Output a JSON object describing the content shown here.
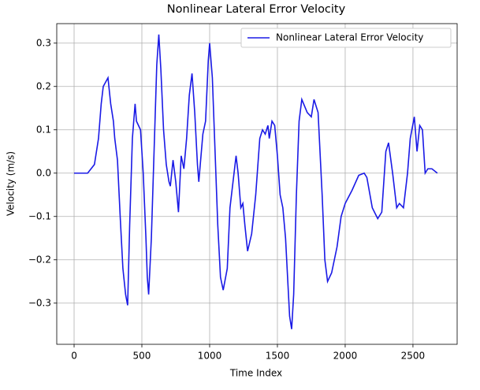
{
  "chart_data": {
    "type": "line",
    "title": "Nonlinear Lateral Error Velocity",
    "x_label": "Time Index",
    "y_label": "Velocity (m/s)",
    "x": [
      0,
      100,
      150,
      170,
      180,
      200,
      215,
      250,
      270,
      290,
      300,
      320,
      340,
      360,
      380,
      395,
      410,
      430,
      450,
      460,
      490,
      510,
      530,
      540,
      550,
      570,
      590,
      610,
      625,
      640,
      660,
      680,
      700,
      710,
      730,
      750,
      770,
      790,
      810,
      830,
      850,
      870,
      890,
      910,
      920,
      950,
      970,
      990,
      1000,
      1020,
      1040,
      1060,
      1080,
      1100,
      1130,
      1150,
      1180,
      1195,
      1210,
      1230,
      1245,
      1260,
      1280,
      1310,
      1340,
      1370,
      1390,
      1410,
      1430,
      1440,
      1460,
      1480,
      1500,
      1520,
      1540,
      1560,
      1590,
      1605,
      1620,
      1640,
      1660,
      1680,
      1720,
      1750,
      1770,
      1800,
      1830,
      1850,
      1870,
      1900,
      1940,
      1970,
      2000,
      2050,
      2100,
      2140,
      2160,
      2200,
      2240,
      2270,
      2300,
      2320,
      2350,
      2380,
      2400,
      2430,
      2460,
      2480,
      2510,
      2530,
      2550,
      2570,
      2590,
      2610,
      2640,
      2680
    ],
    "series": [
      {
        "name": "Nonlinear Lateral Error Velocity",
        "color": "#1a1ae6",
        "values": [
          0,
          0,
          0.02,
          0.06,
          0.08,
          0.16,
          0.2,
          0.22,
          0.16,
          0.12,
          0.08,
          0.03,
          -0.1,
          -0.22,
          -0.28,
          -0.305,
          -0.12,
          0.08,
          0.16,
          0.12,
          0.1,
          0.0,
          -0.15,
          -0.24,
          -0.28,
          -0.15,
          0.05,
          0.25,
          0.32,
          0.24,
          0.1,
          0.02,
          -0.02,
          -0.03,
          0.03,
          -0.02,
          -0.09,
          0.04,
          0.01,
          0.08,
          0.18,
          0.23,
          0.14,
          0.02,
          -0.02,
          0.09,
          0.12,
          0.26,
          0.3,
          0.22,
          0.05,
          -0.12,
          -0.24,
          -0.27,
          -0.22,
          -0.08,
          0.0,
          0.04,
          0.0,
          -0.08,
          -0.07,
          -0.12,
          -0.18,
          -0.14,
          -0.05,
          0.08,
          0.1,
          0.09,
          0.11,
          0.08,
          0.12,
          0.11,
          0.04,
          -0.05,
          -0.08,
          -0.15,
          -0.33,
          -0.36,
          -0.28,
          -0.05,
          0.12,
          0.17,
          0.14,
          0.13,
          0.17,
          0.14,
          -0.05,
          -0.2,
          -0.25,
          -0.23,
          -0.17,
          -0.1,
          -0.07,
          -0.04,
          -0.005,
          0.0,
          -0.01,
          -0.08,
          -0.105,
          -0.09,
          0.05,
          0.07,
          0.0,
          -0.08,
          -0.07,
          -0.08,
          0.0,
          0.08,
          0.13,
          0.05,
          0.11,
          0.1,
          0.0,
          0.01,
          0.01,
          0.0
        ]
      }
    ],
    "xlim": [
      -128,
      2826
    ],
    "ylim": [
      -0.395,
      0.345
    ],
    "xticks": [
      0,
      500,
      1000,
      1500,
      2000,
      2500
    ],
    "yticks": [
      {
        "value": -0.3,
        "label": "−0.3"
      },
      {
        "value": -0.2,
        "label": "−0.2"
      },
      {
        "value": -0.1,
        "label": "−0.1"
      },
      {
        "value": 0,
        "label": "0.0"
      },
      0.1,
      0.2,
      0.3
    ],
    "grid": true,
    "legend": "upper-right"
  }
}
